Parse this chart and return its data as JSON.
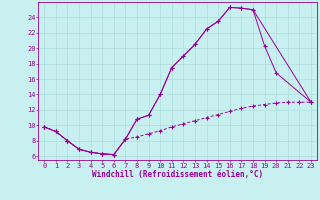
{
  "title": "",
  "xlabel": "Windchill (Refroidissement éolien,°C)",
  "bg_color": "#c8f0f0",
  "line_color": "#990099",
  "grid_color": "#b0dede",
  "xlim": [
    -0.5,
    23.5
  ],
  "ylim": [
    5.5,
    26.0
  ],
  "yticks": [
    6,
    8,
    10,
    12,
    14,
    16,
    18,
    20,
    22,
    24
  ],
  "xticks": [
    0,
    1,
    2,
    3,
    4,
    5,
    6,
    7,
    8,
    9,
    10,
    11,
    12,
    13,
    14,
    15,
    16,
    17,
    18,
    19,
    20,
    21,
    22,
    23
  ],
  "line1_x": [
    0,
    1,
    2,
    3,
    4,
    5,
    6,
    7,
    8,
    9,
    10,
    11,
    12,
    13,
    14,
    15,
    16,
    17,
    18,
    23
  ],
  "line1_y": [
    9.8,
    9.2,
    8.0,
    6.9,
    6.5,
    6.3,
    6.2,
    8.2,
    10.8,
    11.3,
    14.0,
    17.5,
    19.0,
    20.5,
    22.5,
    23.5,
    25.3,
    25.2,
    25.0,
    13.0
  ],
  "line2_x": [
    0,
    1,
    2,
    3,
    4,
    5,
    6,
    7,
    8,
    9,
    10,
    11,
    12,
    13,
    14,
    15,
    16,
    17,
    18,
    19,
    20,
    23
  ],
  "line2_y": [
    9.8,
    9.2,
    8.0,
    6.9,
    6.5,
    6.3,
    6.2,
    8.2,
    10.8,
    11.3,
    14.0,
    17.5,
    19.0,
    20.5,
    22.5,
    23.5,
    25.3,
    25.2,
    25.0,
    20.3,
    16.8,
    13.0
  ],
  "line3_x": [
    0,
    1,
    2,
    3,
    4,
    5,
    6,
    7,
    8,
    9,
    10,
    11,
    12,
    13,
    14,
    15,
    16,
    17,
    18,
    19,
    20,
    21,
    22,
    23
  ],
  "line3_y": [
    9.8,
    9.2,
    8.0,
    6.9,
    6.5,
    6.3,
    6.2,
    8.2,
    8.5,
    8.9,
    9.3,
    9.8,
    10.2,
    10.6,
    11.0,
    11.4,
    11.8,
    12.2,
    12.5,
    12.7,
    12.9,
    13.0,
    13.0,
    13.0
  ],
  "xlabel_fontsize": 5.5,
  "tick_fontsize": 5.0
}
